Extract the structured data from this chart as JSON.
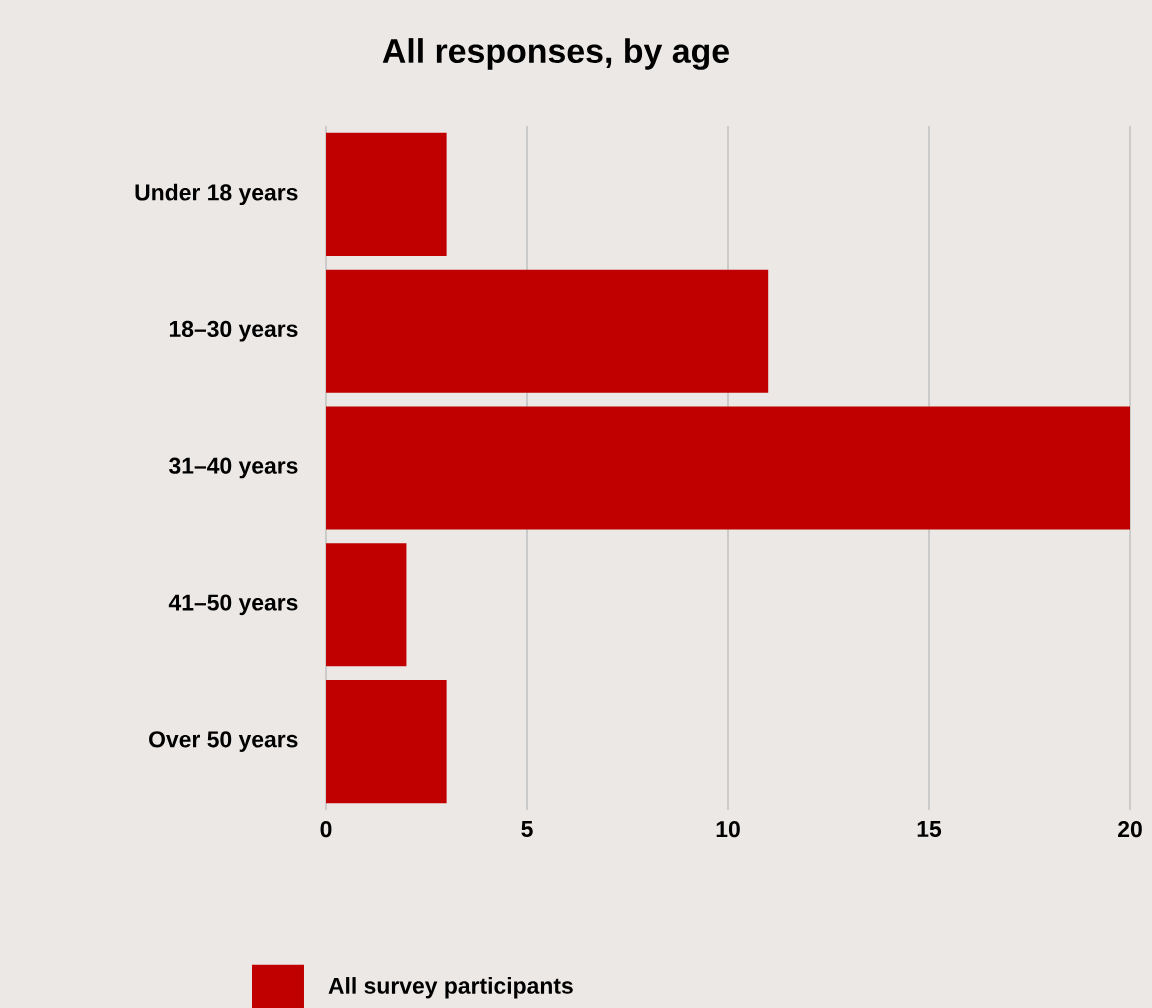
{
  "chart_data": {
    "type": "bar",
    "orientation": "horizontal",
    "title": "All responses, by age",
    "categories": [
      "Under 18 years",
      "18–30 years",
      "31–40 years",
      "41–50 years",
      "Over 50 years"
    ],
    "series": [
      {
        "name": "All survey participants",
        "color": "#c00000",
        "values": [
          3,
          11,
          20,
          2,
          3
        ]
      }
    ],
    "xlim": [
      0,
      20
    ],
    "xticks": [
      0,
      5,
      10,
      15,
      20
    ],
    "grid": "x",
    "legend": "bottom"
  }
}
